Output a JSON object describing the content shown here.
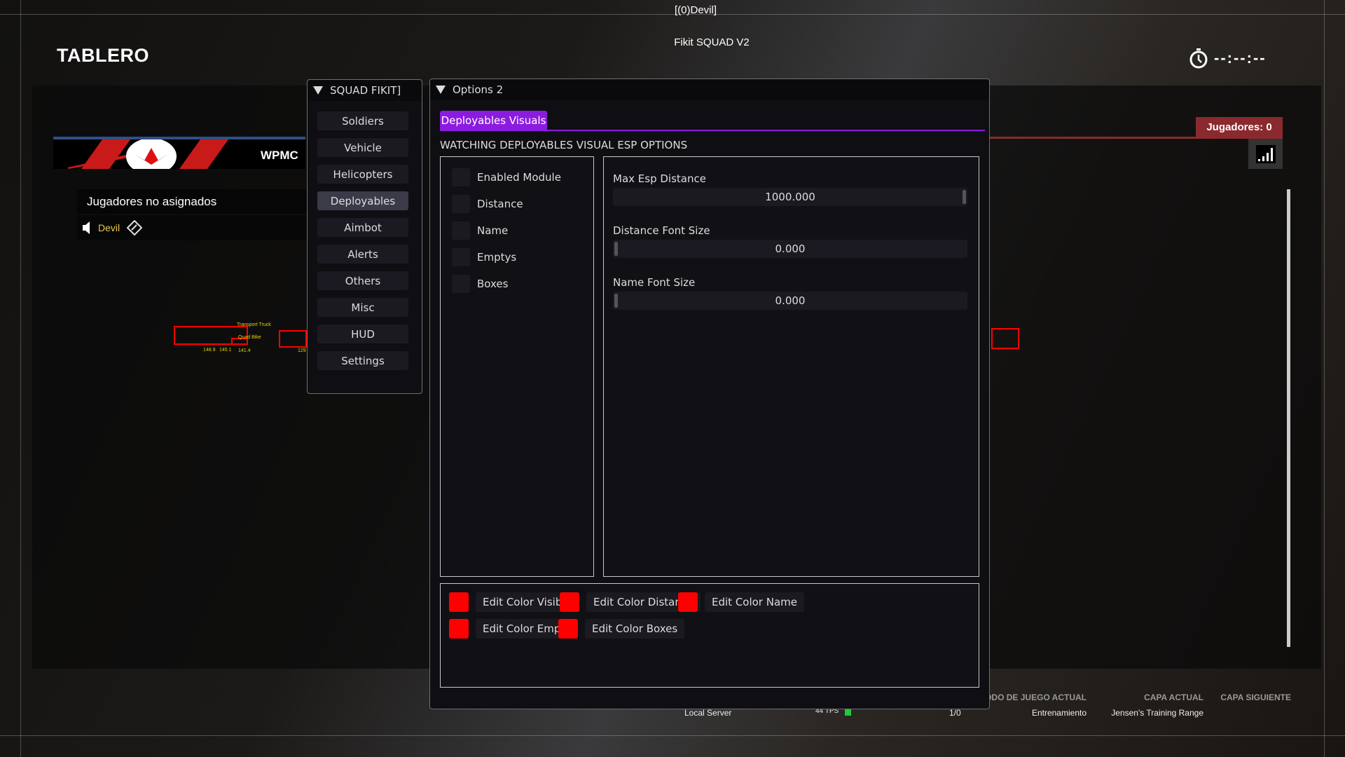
{
  "overlay": {
    "player_tag": "[(0)Devil]",
    "app_title": "Fikit SQUAD V2"
  },
  "scoreboard": {
    "title": "TABLERO",
    "timer": "--:--:--",
    "team_name": "WPMC",
    "unassigned_label": "Jugadores no asignados",
    "player_name": "Devil",
    "players_badge": "Jugadores: 0",
    "info": {
      "labels": [
        "MODO DE JUEGO ACTUAL",
        "CAPA ACTUAL",
        "CAPA SIGUIENTE"
      ],
      "server": "Local Server",
      "tps": "44 TPS",
      "slots": "1/0",
      "game_mode": "Entrenamiento",
      "current_layer": "Jensen's Training Range"
    },
    "accent_red": "#8a2a2e",
    "team_blue": "#2f4f8a"
  },
  "esp": {
    "labels": [
      "Transport Truck",
      "Quad Bike",
      "148.9",
      "145.1",
      "141.4",
      "129"
    ]
  },
  "menu_window": {
    "title": "SQUAD FIKIT]",
    "items": [
      {
        "label": "Soldiers"
      },
      {
        "label": "Vehicle"
      },
      {
        "label": "Helicopters"
      },
      {
        "label": "Deployables",
        "active": true
      },
      {
        "label": "Aimbot"
      },
      {
        "label": "Alerts"
      },
      {
        "label": "Others"
      },
      {
        "label": "Misc"
      },
      {
        "label": "HUD"
      },
      {
        "label": "Settings"
      }
    ]
  },
  "options_window": {
    "title": "Options 2",
    "tab": "Deployables Visuals",
    "heading": "WATCHING DEPLOYABLES VISUAL ESP OPTIONS",
    "checkboxes": [
      {
        "label": "Enabled Module",
        "checked": false
      },
      {
        "label": "Distance",
        "checked": false
      },
      {
        "label": "Name",
        "checked": false
      },
      {
        "label": "Emptys",
        "checked": false
      },
      {
        "label": "Boxes",
        "checked": false
      }
    ],
    "sliders": [
      {
        "label": "Max Esp Distance",
        "value": "1000.000",
        "fraction": 1.0
      },
      {
        "label": "Distance Font Size",
        "value": "0.000",
        "fraction": 0.0
      },
      {
        "label": "Name Font Size",
        "value": "0.000",
        "fraction": 0.0
      }
    ],
    "color_buttons": [
      {
        "label": "Edit Color Visible",
        "color": "#ff0000"
      },
      {
        "label": "Edit Color Distance",
        "color": "#ff0000"
      },
      {
        "label": "Edit Color Name",
        "color": "#ff0000"
      },
      {
        "label": "Edit Color Empty",
        "color": "#ff0000"
      },
      {
        "label": "Edit Color Boxes",
        "color": "#ff0000"
      }
    ],
    "accent": "#8c1be0"
  }
}
